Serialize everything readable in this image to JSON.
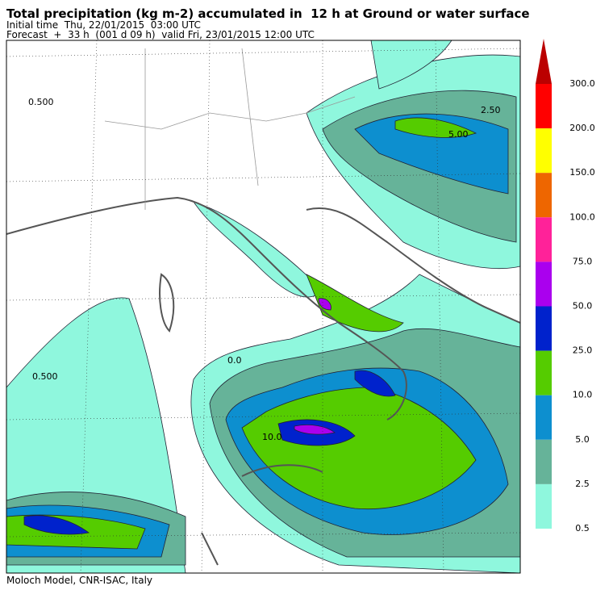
{
  "header": {
    "title": "Total precipitation (kg m-2) accumulated in  12 h at Ground or water surface",
    "initial_time": "Initial time  Thu, 22/01/2015  03:00 UTC",
    "forecast": "Forecast  +  33 h  (001 d 09 h)  valid Fri, 23/01/2015 12:00 UTC"
  },
  "legend": {
    "levels": [
      "300.0",
      "200.0",
      "150.0",
      "100.0",
      "75.0",
      "50.0",
      "25.0",
      "10.0",
      "5.0",
      "2.5",
      "0.5"
    ],
    "colors": [
      "#ff0000",
      "#ffff00",
      "#ee6600",
      "#ff2299",
      "#aa00ee",
      "#0022cc",
      "#55cc00",
      "#0d8fcf",
      "#66b399",
      "#8ff7dd"
    ],
    "above_color": "#bb0000"
  },
  "map": {
    "contour_labels": [
      "0.500",
      "2.50",
      "5.00",
      "10.0",
      "0.0",
      "0.500"
    ]
  },
  "footer": {
    "credit": "Moloch Model, CNR-ISAC, Italy"
  }
}
